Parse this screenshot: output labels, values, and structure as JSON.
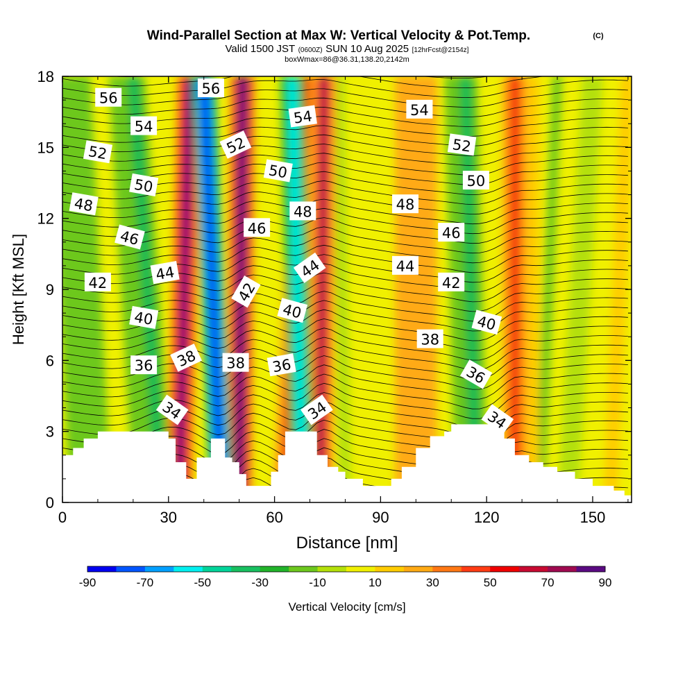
{
  "chart_data": {
    "type": "heatmap",
    "title": "Wind-Parallel Section at Max W: Vertical Velocity & Pot.Temp.",
    "copyright_mark": "(C)",
    "subtitle_main": "Valid 1500 JST",
    "subtitle_utc": "(0600Z)",
    "subtitle_date": "SUN 10 Aug 2025",
    "subtitle_fcst": "[12hrFcst@2154z]",
    "subtitle2": "boxWmax=86@36.31,138.20,2142m",
    "xlabel": "Distance [nm]",
    "ylabel": "Height [Kft MSL]",
    "xlim": [
      0,
      161
    ],
    "ylim": [
      0,
      18
    ],
    "x_ticks": [
      0,
      30,
      60,
      90,
      120,
      150
    ],
    "y_ticks": [
      0,
      3,
      6,
      9,
      12,
      15,
      18
    ],
    "colorbar": {
      "label": "Vertical Velocity [cm/s]",
      "tick_labels": [
        "-90",
        "-70",
        "-50",
        "-30",
        "-10",
        "10",
        "30",
        "50",
        "70",
        "90"
      ],
      "bounds": [
        -90,
        -80,
        -70,
        -60,
        -50,
        -40,
        -30,
        -20,
        -10,
        0,
        10,
        20,
        30,
        40,
        50,
        60,
        70,
        80,
        90
      ],
      "colors": [
        "#0000f0",
        "#0055ff",
        "#00a0ff",
        "#00f0f0",
        "#00d49a",
        "#18c060",
        "#22b42a",
        "#6dc81e",
        "#b4e00a",
        "#f0f000",
        "#ffcc00",
        "#ffaa14",
        "#ff7814",
        "#ff3c14",
        "#f00000",
        "#c80a32",
        "#a00a50",
        "#5a0a82"
      ]
    },
    "updraft_bands": [
      {
        "x_bottom": 33,
        "x_top": 36,
        "max_cm_s": 80
      },
      {
        "x_bottom": 50,
        "x_top": 51,
        "max_cm_s": 86
      },
      {
        "x_bottom": 63,
        "x_top": 69,
        "max_cm_s": 50
      },
      {
        "x_bottom": 73,
        "x_top": 74,
        "max_cm_s": 70
      },
      {
        "x_bottom": 128,
        "x_top": 128,
        "max_cm_s": 50
      }
    ],
    "downdraft_bands": [
      {
        "x_bottom": 45,
        "x_top": 40,
        "min_cm_s": -90
      },
      {
        "x_bottom": 68,
        "x_top": 65,
        "min_cm_s": -60
      },
      {
        "x_bottom": 117,
        "x_top": 114,
        "min_cm_s": -40
      },
      {
        "x_bottom": 28,
        "x_top": 20,
        "min_cm_s": -40
      }
    ],
    "terrain_kft": [
      [
        0,
        2.0
      ],
      [
        3,
        2.3
      ],
      [
        6,
        2.7
      ],
      [
        10,
        3.0
      ],
      [
        29,
        3.0
      ],
      [
        30,
        2.7
      ],
      [
        32,
        1.7
      ],
      [
        35,
        1.0
      ],
      [
        38,
        1.9
      ],
      [
        42,
        2.7
      ],
      [
        45,
        2.7
      ],
      [
        46,
        1.9
      ],
      [
        48,
        1.7
      ],
      [
        50,
        1.2
      ],
      [
        52,
        0.7
      ],
      [
        58,
        0.7
      ],
      [
        59,
        1.3
      ],
      [
        61,
        2.0
      ],
      [
        63,
        3.0
      ],
      [
        71,
        3.0
      ],
      [
        72,
        2.0
      ],
      [
        75,
        1.5
      ],
      [
        78,
        1.3
      ],
      [
        80,
        1.0
      ],
      [
        85,
        0.7
      ],
      [
        92,
        0.7
      ],
      [
        93,
        1.0
      ],
      [
        96,
        1.5
      ],
      [
        100,
        2.3
      ],
      [
        104,
        2.8
      ],
      [
        108,
        3.0
      ],
      [
        110,
        3.3
      ],
      [
        123,
        3.3
      ],
      [
        125,
        2.7
      ],
      [
        128,
        2.0
      ],
      [
        132,
        1.7
      ],
      [
        136,
        1.5
      ],
      [
        140,
        1.3
      ],
      [
        145,
        1.0
      ],
      [
        150,
        0.7
      ],
      [
        156,
        0.5
      ],
      [
        159,
        0.3
      ],
      [
        161,
        0.3
      ]
    ],
    "theta_contour_labels": [
      {
        "text": "56",
        "x": 13,
        "y": 17.1,
        "rot": 0
      },
      {
        "text": "56",
        "x": 42,
        "y": 17.5,
        "rot": 0
      },
      {
        "text": "54",
        "x": 23,
        "y": 15.9,
        "rot": 0
      },
      {
        "text": "54",
        "x": 68,
        "y": 16.3,
        "rot": -8
      },
      {
        "text": "54",
        "x": 101,
        "y": 16.6,
        "rot": 0
      },
      {
        "text": "52",
        "x": 10,
        "y": 14.8,
        "rot": 10
      },
      {
        "text": "52",
        "x": 49,
        "y": 15.1,
        "rot": -25
      },
      {
        "text": "52",
        "x": 113,
        "y": 15.1,
        "rot": 8
      },
      {
        "text": "50",
        "x": 23,
        "y": 13.4,
        "rot": 10
      },
      {
        "text": "50",
        "x": 61,
        "y": 14.0,
        "rot": 10
      },
      {
        "text": "50",
        "x": 117,
        "y": 13.6,
        "rot": 0
      },
      {
        "text": "48",
        "x": 6,
        "y": 12.6,
        "rot": 10
      },
      {
        "text": "48",
        "x": 68,
        "y": 12.3,
        "rot": 0
      },
      {
        "text": "48",
        "x": 97,
        "y": 12.6,
        "rot": 0
      },
      {
        "text": "46",
        "x": 19,
        "y": 11.2,
        "rot": 15
      },
      {
        "text": "46",
        "x": 55,
        "y": 11.6,
        "rot": 0
      },
      {
        "text": "46",
        "x": 110,
        "y": 11.4,
        "rot": 0
      },
      {
        "text": "44",
        "x": 29,
        "y": 9.7,
        "rot": -10
      },
      {
        "text": "44",
        "x": 70,
        "y": 9.9,
        "rot": -35
      },
      {
        "text": "44",
        "x": 97,
        "y": 10.0,
        "rot": 0
      },
      {
        "text": "42",
        "x": 10,
        "y": 9.3,
        "rot": 0
      },
      {
        "text": "42",
        "x": 52,
        "y": 8.9,
        "rot": -60
      },
      {
        "text": "42",
        "x": 110,
        "y": 9.3,
        "rot": 0
      },
      {
        "text": "40",
        "x": 23,
        "y": 7.8,
        "rot": 10
      },
      {
        "text": "40",
        "x": 65,
        "y": 8.1,
        "rot": 15
      },
      {
        "text": "40",
        "x": 120,
        "y": 7.6,
        "rot": 15
      },
      {
        "text": "38",
        "x": 35,
        "y": 6.1,
        "rot": -25
      },
      {
        "text": "38",
        "x": 49,
        "y": 5.9,
        "rot": 0
      },
      {
        "text": "38",
        "x": 104,
        "y": 6.9,
        "rot": 0
      },
      {
        "text": "36",
        "x": 23,
        "y": 5.8,
        "rot": 0
      },
      {
        "text": "36",
        "x": 62,
        "y": 5.8,
        "rot": -10
      },
      {
        "text": "36",
        "x": 117,
        "y": 5.4,
        "rot": 30
      },
      {
        "text": "34",
        "x": 31,
        "y": 3.9,
        "rot": 35
      },
      {
        "text": "34",
        "x": 72,
        "y": 3.9,
        "rot": -35
      },
      {
        "text": "34",
        "x": 123,
        "y": 3.5,
        "rot": 35
      }
    ]
  }
}
